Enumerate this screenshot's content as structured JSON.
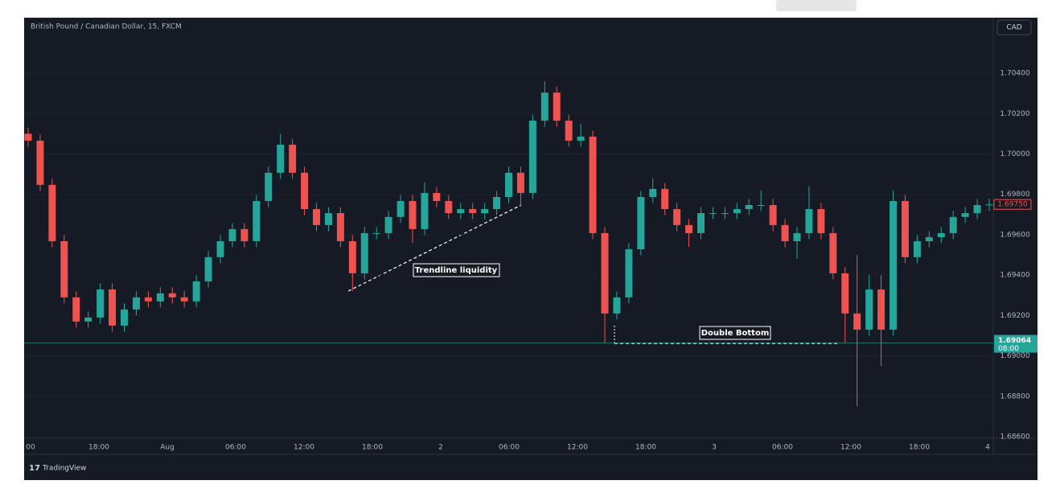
{
  "chart_data": {
    "type": "candlestick",
    "title": "British Pound / Canadian Dollar, 15, FXCM",
    "currency": "CAD",
    "brand": "TradingView",
    "up_color": "#26a69a",
    "down_color": "#ef5350",
    "ylim": [
      1.68592,
      1.70675
    ],
    "yticks": [
      {
        "value": 1.686,
        "label": "1.68600"
      },
      {
        "value": 1.688,
        "label": "1.68800"
      },
      {
        "value": 1.69,
        "label": "1.69000"
      },
      {
        "value": 1.692,
        "label": "1.69200"
      },
      {
        "value": 1.694,
        "label": "1.69400"
      },
      {
        "value": 1.696,
        "label": "1.69600"
      },
      {
        "value": 1.698,
        "label": "1.69800"
      },
      {
        "value": 1.7,
        "label": "1.70000"
      },
      {
        "value": 1.702,
        "label": "1.70200"
      },
      {
        "value": 1.704,
        "label": "1.70400"
      }
    ],
    "xticks": [
      "00",
      "18:00",
      "Aug",
      "06:00",
      "12:00",
      "18:00",
      "2",
      "06:00",
      "12:00",
      "18:00",
      "3",
      "06:00",
      "12:00",
      "18:00",
      "4"
    ],
    "last_price": {
      "value": 1.6975,
      "label": "1.69750"
    },
    "marker_price": {
      "value": 1.69064,
      "label": "1.69064",
      "time": "08:00"
    },
    "annotations": [
      "Trendline liquidity",
      "Double Bottom"
    ],
    "ohlc": [
      [
        1.701,
        1.7013,
        1.70036,
        1.70066
      ],
      [
        1.70066,
        1.70096,
        1.69817,
        1.69847
      ],
      [
        1.69847,
        1.69877,
        1.69538,
        1.69568
      ],
      [
        1.69568,
        1.69598,
        1.6926,
        1.6929
      ],
      [
        1.6929,
        1.6932,
        1.6914,
        1.6917
      ],
      [
        1.6917,
        1.6922,
        1.6914,
        1.6919
      ],
      [
        1.6919,
        1.69359,
        1.6916,
        1.69329
      ],
      [
        1.69329,
        1.69359,
        1.6912,
        1.6915
      ],
      [
        1.6915,
        1.6926,
        1.6912,
        1.6923
      ],
      [
        1.6923,
        1.6932,
        1.692,
        1.6929
      ],
      [
        1.6929,
        1.6932,
        1.6924,
        1.6927
      ],
      [
        1.6927,
        1.6934,
        1.6924,
        1.6931
      ],
      [
        1.6931,
        1.6934,
        1.6926,
        1.6929
      ],
      [
        1.6929,
        1.6932,
        1.6924,
        1.6927
      ],
      [
        1.6927,
        1.69399,
        1.6924,
        1.69369
      ],
      [
        1.69369,
        1.69519,
        1.69339,
        1.69489
      ],
      [
        1.69489,
        1.69598,
        1.69459,
        1.69568
      ],
      [
        1.69568,
        1.69658,
        1.69538,
        1.69628
      ],
      [
        1.69628,
        1.69658,
        1.69538,
        1.69568
      ],
      [
        1.69568,
        1.69797,
        1.69538,
        1.69767
      ],
      [
        1.69767,
        1.69937,
        1.69737,
        1.69907
      ],
      [
        1.69907,
        1.701,
        1.69877,
        1.70046
      ],
      [
        1.70046,
        1.70076,
        1.69877,
        1.69907
      ],
      [
        1.69907,
        1.69937,
        1.69697,
        1.69727
      ],
      [
        1.69727,
        1.69757,
        1.69618,
        1.69648
      ],
      [
        1.69648,
        1.69737,
        1.69618,
        1.69707
      ],
      [
        1.69707,
        1.69737,
        1.69538,
        1.69568
      ],
      [
        1.69568,
        1.69598,
        1.6932,
        1.69409
      ],
      [
        1.69409,
        1.69638,
        1.69379,
        1.69608
      ],
      [
        1.69608,
        1.69638,
        1.69578,
        1.69608
      ],
      [
        1.69608,
        1.69718,
        1.69578,
        1.69688
      ],
      [
        1.69688,
        1.69797,
        1.69658,
        1.69767
      ],
      [
        1.69767,
        1.69797,
        1.6956,
        1.69628
      ],
      [
        1.69628,
        1.6986,
        1.69598,
        1.69807
      ],
      [
        1.69807,
        1.69837,
        1.69737,
        1.69767
      ],
      [
        1.69767,
        1.69797,
        1.69677,
        1.69707
      ],
      [
        1.69707,
        1.69757,
        1.69677,
        1.69727
      ],
      [
        1.69727,
        1.69757,
        1.69677,
        1.69707
      ],
      [
        1.69707,
        1.69757,
        1.69677,
        1.69727
      ],
      [
        1.69727,
        1.69817,
        1.69697,
        1.69787
      ],
      [
        1.69787,
        1.69937,
        1.69757,
        1.69907
      ],
      [
        1.69907,
        1.69937,
        1.6974,
        1.69807
      ],
      [
        1.69807,
        1.70195,
        1.69777,
        1.70165
      ],
      [
        1.70165,
        1.7036,
        1.70135,
        1.70304
      ],
      [
        1.70304,
        1.70334,
        1.70135,
        1.70165
      ],
      [
        1.70165,
        1.70195,
        1.70036,
        1.70066
      ],
      [
        1.70066,
        1.7015,
        1.70036,
        1.70086
      ],
      [
        1.70086,
        1.70116,
        1.69578,
        1.69608
      ],
      [
        1.69608,
        1.69638,
        1.69064,
        1.6921
      ],
      [
        1.6921,
        1.6932,
        1.6918,
        1.6929
      ],
      [
        1.6929,
        1.69558,
        1.6926,
        1.69528
      ],
      [
        1.69528,
        1.69817,
        1.69498,
        1.69787
      ],
      [
        1.69787,
        1.6988,
        1.69757,
        1.69827
      ],
      [
        1.69827,
        1.69857,
        1.69697,
        1.69727
      ],
      [
        1.69727,
        1.69757,
        1.69618,
        1.69648
      ],
      [
        1.69648,
        1.69678,
        1.6954,
        1.69608
      ],
      [
        1.69608,
        1.69737,
        1.69578,
        1.69707
      ],
      [
        1.69707,
        1.69737,
        1.69677,
        1.69707
      ],
      [
        1.69707,
        1.69737,
        1.69677,
        1.69707
      ],
      [
        1.69707,
        1.69757,
        1.69677,
        1.69727
      ],
      [
        1.69727,
        1.69777,
        1.69697,
        1.69747
      ],
      [
        1.69747,
        1.6982,
        1.69717,
        1.69747
      ],
      [
        1.69747,
        1.69777,
        1.69618,
        1.69648
      ],
      [
        1.69648,
        1.69678,
        1.69538,
        1.69568
      ],
      [
        1.69568,
        1.69638,
        1.6948,
        1.69608
      ],
      [
        1.69608,
        1.6984,
        1.69578,
        1.69727
      ],
      [
        1.69727,
        1.69757,
        1.69578,
        1.69608
      ],
      [
        1.69608,
        1.69638,
        1.69379,
        1.69409
      ],
      [
        1.69409,
        1.69439,
        1.69064,
        1.6921
      ],
      [
        1.6921,
        1.695,
        1.6875,
        1.6913
      ],
      [
        1.6913,
        1.694,
        1.691,
        1.69329
      ],
      [
        1.69329,
        1.694,
        1.6895,
        1.6913
      ],
      [
        1.6913,
        1.6982,
        1.691,
        1.69767
      ],
      [
        1.69767,
        1.69797,
        1.69459,
        1.69489
      ],
      [
        1.69489,
        1.69598,
        1.69459,
        1.69568
      ],
      [
        1.69568,
        1.69618,
        1.69538,
        1.69588
      ],
      [
        1.69588,
        1.69638,
        1.69558,
        1.69608
      ],
      [
        1.69608,
        1.69718,
        1.69578,
        1.69688
      ],
      [
        1.69688,
        1.69737,
        1.69658,
        1.69707
      ],
      [
        1.69707,
        1.69777,
        1.69677,
        1.69747
      ],
      [
        1.69747,
        1.6978,
        1.69717,
        1.6975
      ]
    ]
  }
}
